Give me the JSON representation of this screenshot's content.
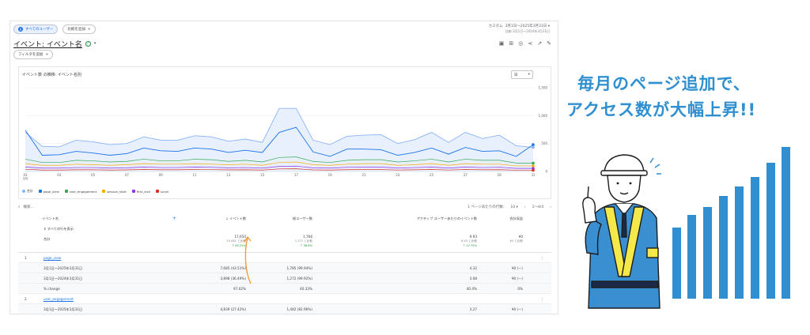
{
  "topbar": {
    "segment_chip": "すべてのユーザー",
    "compare_chip": "比較を追加",
    "date_label": "カスタム",
    "date_range": "3月1日～2025年3月31日",
    "date_compare": "比較:3月1日～2024年3月31日"
  },
  "header": {
    "title": "イベント: イベント名",
    "filter_chip": "フィルタを追加"
  },
  "chart": {
    "title": "イベント数 の推移: イベント名別",
    "granularity": "日",
    "legend": [
      "合計",
      "page_view",
      "user_engagement",
      "session_start",
      "first_visit",
      "scroll"
    ]
  },
  "chart_data": {
    "type": "line",
    "x_tick_labels": [
      "01\n3月",
      "03",
      "05",
      "07",
      "09",
      "11",
      "13",
      "15",
      "17",
      "19",
      "21",
      "23",
      "25",
      "27",
      "29",
      "31"
    ],
    "y_tick_labels": [
      "1,500",
      "1,000",
      "500",
      "0"
    ],
    "ylim": [
      0,
      1500
    ],
    "series": [
      {
        "name": "合計",
        "color": "#8ab4f8",
        "values": [
          700,
          450,
          440,
          560,
          530,
          480,
          500,
          620,
          560,
          560,
          640,
          620,
          540,
          580,
          520,
          1130,
          1130,
          560,
          480,
          630,
          650,
          660,
          500,
          570,
          700,
          520,
          700,
          590,
          650,
          460,
          430
        ]
      },
      {
        "name": "page_view",
        "color": "#1a73e8",
        "values": [
          740,
          290,
          300,
          360,
          330,
          290,
          320,
          420,
          370,
          360,
          420,
          400,
          340,
          380,
          340,
          700,
          790,
          350,
          270,
          400,
          400,
          390,
          290,
          340,
          420,
          310,
          430,
          360,
          370,
          270,
          480
        ]
      },
      {
        "name": "user_engagement",
        "color": "#34a853",
        "values": [
          220,
          160,
          160,
          200,
          190,
          170,
          180,
          220,
          190,
          190,
          220,
          210,
          180,
          200,
          170,
          250,
          260,
          180,
          160,
          200,
          210,
          210,
          170,
          190,
          220,
          170,
          220,
          200,
          200,
          150,
          150
        ]
      },
      {
        "name": "session_start",
        "color": "#f9ab00",
        "values": [
          140,
          110,
          110,
          130,
          120,
          110,
          120,
          140,
          130,
          130,
          140,
          130,
          120,
          130,
          110,
          160,
          170,
          120,
          110,
          130,
          140,
          140,
          110,
          120,
          140,
          110,
          140,
          130,
          130,
          100,
          100
        ]
      },
      {
        "name": "first_visit",
        "color": "#9334e6",
        "values": [
          80,
          60,
          60,
          70,
          70,
          60,
          65,
          80,
          70,
          70,
          80,
          75,
          65,
          70,
          60,
          90,
          95,
          65,
          60,
          75,
          80,
          80,
          60,
          70,
          80,
          60,
          80,
          70,
          75,
          55,
          55
        ]
      },
      {
        "name": "scroll",
        "color": "#d93025",
        "values": [
          40,
          25,
          25,
          30,
          30,
          25,
          28,
          35,
          30,
          30,
          35,
          33,
          28,
          30,
          25,
          45,
          48,
          28,
          25,
          32,
          34,
          34,
          26,
          30,
          35,
          26,
          35,
          30,
          32,
          22,
          22
        ]
      }
    ]
  },
  "search": {
    "placeholder": "検索...",
    "rows_label": "1 ページあたりの行数:",
    "rows_value": "10",
    "page_label": "1〜4/4"
  },
  "table": {
    "headers": {
      "event_name": "イベント名",
      "event_count": "イベント数",
      "total_users": "総ユーザー数",
      "per_user": "アクティブ ユーザーあたりのイベント数",
      "revenue": "合計収益"
    },
    "add_label": "+",
    "show_rows": "すべての行を表示",
    "total_label": "合計",
    "totals": {
      "event_count": "17,650",
      "event_count_cmp": "10,681 と比較",
      "event_count_pct": "↑ 65.25%",
      "total_users": "1,766",
      "total_users_cmp": "1,272 と比較",
      "total_users_pct": "↑ 38.8%",
      "per_user": "9.93",
      "per_user_cmp": "8.43 と比較",
      "per_user_pct": "↑ 17.75%",
      "revenue": "¥0",
      "revenue_cmp": "¥0 と比較"
    },
    "groups": [
      {
        "index": "1",
        "name": "page_view",
        "rows": [
          {
            "label": "3月1日～2025年3月31日",
            "event_count": "7,685 (43.51%)",
            "users": "1,785 (99.94%)",
            "per_user": "4.32",
            "revenue": "¥0 (—)"
          },
          {
            "label": "3月1日～2024年3月31日",
            "event_count": "3,898 (36.49%)",
            "users": "1,272 (99.92%)",
            "per_user": "3.08",
            "revenue": "¥0 (—)"
          },
          {
            "label": "% change",
            "event_count": "97.02%",
            "users": "40.33%",
            "per_user": "40.4%",
            "revenue": "0%"
          }
        ]
      },
      {
        "index": "2",
        "name": "user_engagement",
        "rows": [
          {
            "label": "3月1日～2025年3月31日",
            "event_count": "4,839 (27.42%)",
            "users": "1,482 (82.96%)",
            "per_user": "3.27",
            "revenue": "¥0 (—)"
          },
          {
            "label": "3月1日～2024年3月31日",
            "event_count": "3,300 (30.9%)",
            "users": "1,040 (81.7%)",
            "per_user": "3.18",
            "revenue": "¥0 (—)"
          },
          {
            "label": "% change",
            "event_count": "46.64%",
            "users": "42.5%",
            "per_user": "2.77%",
            "revenue": "0%"
          }
        ]
      }
    ]
  },
  "ad": {
    "line1": "毎月のページ追加で、",
    "line2": "アクセス数が大幅上昇!!"
  },
  "icons": [
    "segment-icon",
    "plus-icon",
    "check-circle-icon",
    "chevron-down-icon",
    "share-icon",
    "insights-icon",
    "edit-icon",
    "search-icon",
    "sort-arrow-icon",
    "more-icon"
  ]
}
